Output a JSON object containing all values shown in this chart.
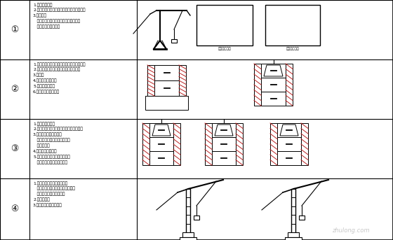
{
  "bg_color": "#ffffff",
  "border_color": "#000000",
  "row_tops": [
    0,
    85,
    170,
    255,
    343
  ],
  "col_bounds": [
    0,
    42,
    195,
    560
  ],
  "step_labels": [
    "①",
    "②",
    "③",
    "④"
  ],
  "texts": [
    "1.备料、加工；\n2.将用于第一节模板安装的模板块运至现场；\n3.支立杆；\n   安装第一节模板，第一节钢筋、浏笼；\n   浇筑第一节混凝土。",
    "1.拆除第一节模板，将其翻转到第三节位置；\n2.安装第二节模板，第二节钢筋、浏笼；\n3.浇筑；\n4.第一节浣度检验；\n5.内模安装就位；\n6.浇筑第二节混凝土。",
    "1.塪天工具就位；\n2.将第一节模板展开，安装到第三节位置；\n3.拆除第二节模板，内模\n   散拆；安装第二节内模，安装\n   内模支撑。\n4.第二节模板就位；\n5.第二节钢筋绑扎，流笼安装；\n   浇筑，完成第三节混凝土。",
    "1.其他各节，重复上述工序；\n   拆除第一节模板安装到最高位置；\n   最上面模板浇筑完成后。\n2.安装盖棁；\n3.浇筑完成后拆除模板。"
  ],
  "label1a": "钉面板示意图",
  "label1b": "钉面板示意图",
  "red_color": "#bb2222"
}
